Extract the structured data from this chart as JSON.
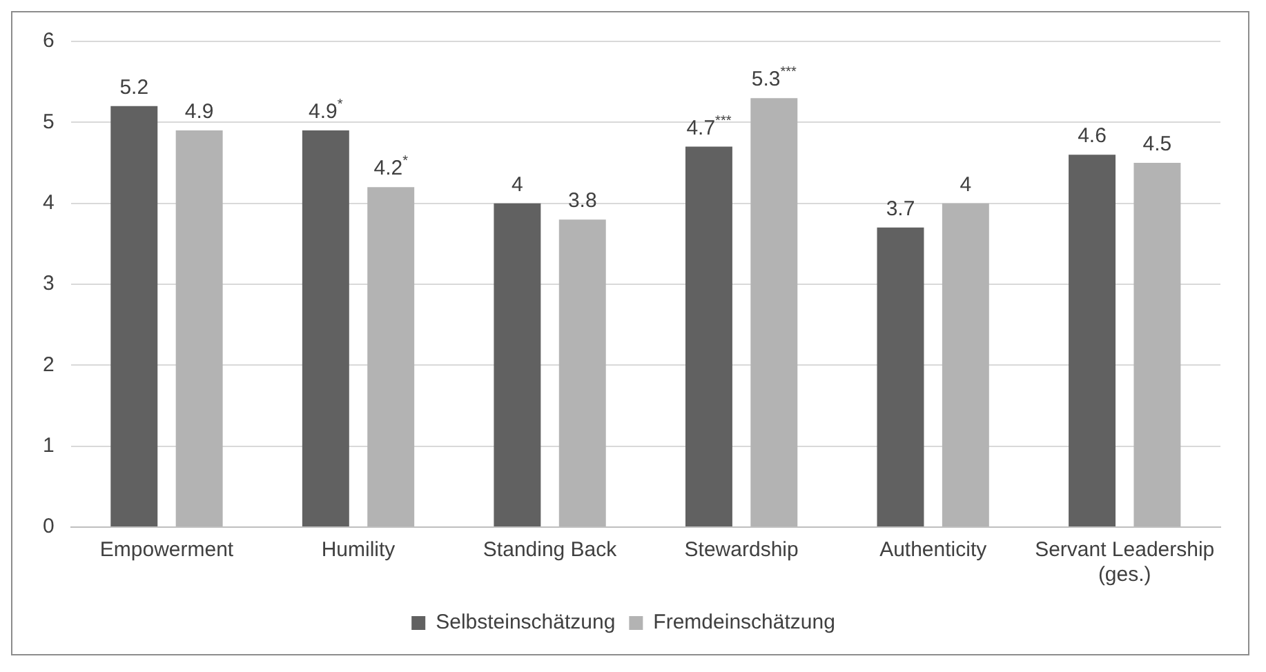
{
  "chart_data": {
    "type": "bar",
    "categories": [
      "Empowerment",
      "Humility",
      "Standing Back",
      "Stewardship",
      "Authenticity",
      "Servant Leadership (ges.)"
    ],
    "series": [
      {
        "name": "Selbsteinschätzung",
        "color": "#616161",
        "values": [
          5.2,
          4.9,
          4,
          4.7,
          3.7,
          4.6
        ],
        "value_labels": [
          "5.2",
          "4.9$^{*}$",
          "4",
          "4.7$^{***}$",
          "3.7",
          "4.6"
        ]
      },
      {
        "name": "Fremdeinschätzung",
        "color": "#b3b3b3",
        "values": [
          4.9,
          4.2,
          3.8,
          5.3,
          4,
          4.5
        ],
        "value_labels": [
          "4.9",
          "4.2$^{*}$",
          "3.8",
          "5.3$^{***}$",
          "4",
          "4.5"
        ]
      }
    ],
    "ylim": [
      0,
      6
    ],
    "yticks": [
      0,
      1,
      2,
      3,
      4,
      5,
      6
    ],
    "grid": "y",
    "legend": "bottom"
  }
}
